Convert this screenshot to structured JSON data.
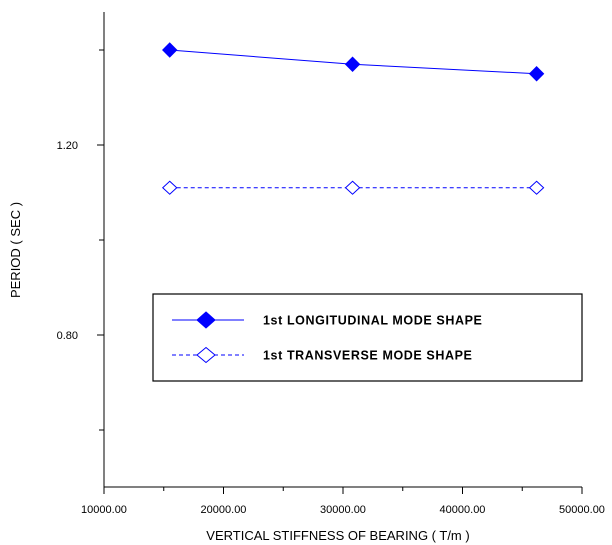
{
  "chart_data": {
    "type": "line",
    "title": "",
    "xlabel": "VERTICAL STIFFNESS OF BEARING ( T/m )",
    "ylabel": "PERIOD ( SEC )",
    "xlim": [
      10000,
      50000
    ],
    "ylim": [
      0.48,
      1.48
    ],
    "x_ticks": [
      10000,
      20000,
      30000,
      40000,
      50000
    ],
    "x_tick_labels": [
      "10000.00",
      "20000.00",
      "30000.00",
      "40000.00",
      "50000.00"
    ],
    "y_ticks": [
      0.8,
      1.2
    ],
    "y_tick_labels": [
      "0.80",
      "1.20"
    ],
    "grid": false,
    "legend_position": "center-right",
    "series": [
      {
        "name": "1st LONGITUDINAL MODE SHAPE",
        "x": [
          15500,
          30800,
          46200
        ],
        "values": [
          1.4,
          1.37,
          1.35
        ],
        "marker": "filled-diamond",
        "line_style": "solid",
        "color": "#0000ff"
      },
      {
        "name": "1st TRANSVERSE MODE SHAPE",
        "x": [
          15500,
          30800,
          46200
        ],
        "values": [
          1.11,
          1.11,
          1.11
        ],
        "marker": "open-diamond",
        "line_style": "dashed",
        "color": "#0000ff"
      }
    ]
  }
}
